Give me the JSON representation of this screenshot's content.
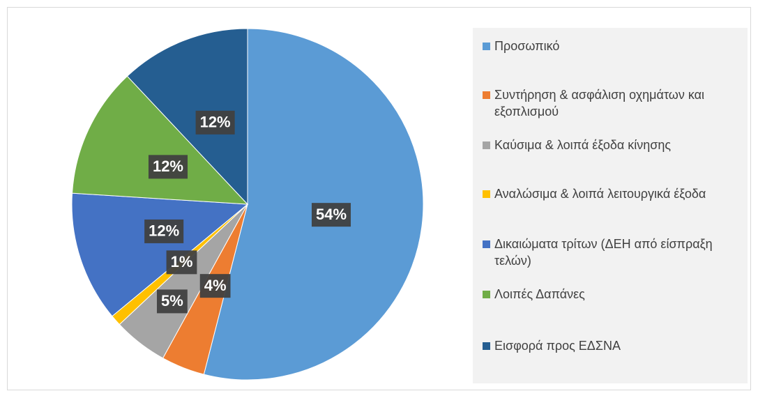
{
  "chart_data": {
    "type": "pie",
    "categories": [
      "Προσωπικό",
      "Συντήρηση & ασφάλιση οχημάτων και εξοπλισμού",
      "Καύσιμα & λοιπά έξοδα κίνησης",
      "Αναλώσιμα & λοιπά λειτουργικά έξοδα",
      "Δικαιώματα τρίτων (ΔΕΗ από είσπραξη τελών)",
      "Λοιπές Δαπάνες",
      "Εισφορά προς ΕΔΣΝΑ"
    ],
    "values": [
      54,
      4,
      5,
      1,
      12,
      12,
      12
    ],
    "value_labels": [
      "54%",
      "4%",
      "5%",
      "1%",
      "12%",
      "12%",
      "12%"
    ],
    "colors": [
      "#5b9bd5",
      "#ed7d31",
      "#a5a5a5",
      "#ffc000",
      "#4472c4",
      "#70ad47",
      "#255e91"
    ],
    "legend": "right"
  }
}
